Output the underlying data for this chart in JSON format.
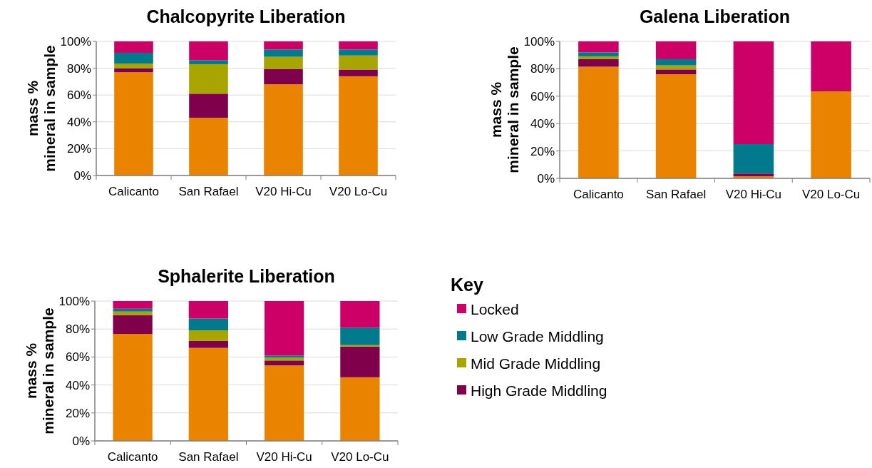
{
  "chart_data": [
    {
      "type": "bar",
      "stacked": true,
      "title": "Chalcopyrite Liberation",
      "ylabel": "mass %\nmineral in sample",
      "categories": [
        "Calicanto",
        "San Rafael",
        "V20 Hi-Cu",
        "V20 Lo-Cu"
      ],
      "ylim": [
        0,
        100
      ],
      "yticks": [
        {
          "value": 0,
          "label": "0%"
        },
        {
          "value": 20,
          "label": "20%"
        },
        {
          "value": 40,
          "label": "40%"
        },
        {
          "value": 60,
          "label": "60%"
        },
        {
          "value": 80,
          "label": "80%"
        },
        {
          "value": 100,
          "label": "100%"
        }
      ],
      "grid": "y",
      "legend": false,
      "series": [
        {
          "color": "#e98300",
          "values": [
            77,
            43,
            68,
            74
          ]
        },
        {
          "color": "#80004c",
          "values": [
            3,
            18,
            11.5,
            5
          ]
        },
        {
          "color": "#a8a400",
          "values": [
            3.5,
            22,
            9,
            10.5
          ]
        },
        {
          "color": "#007a8c",
          "values": [
            8,
            3,
            5.5,
            4.5
          ]
        },
        {
          "color": "#cc0066",
          "values": [
            8.5,
            14,
            6,
            6
          ]
        }
      ]
    },
    {
      "type": "bar",
      "stacked": true,
      "title": "Galena Liberation",
      "ylabel": "mass %\nmineral in sample",
      "categories": [
        "Calicanto",
        "San Rafael",
        "V20 Hi-Cu",
        "V20 Lo-Cu"
      ],
      "ylim": [
        0,
        100
      ],
      "yticks": [
        {
          "value": 0,
          "label": "0%"
        },
        {
          "value": 20,
          "label": "20%"
        },
        {
          "value": 40,
          "label": "40%"
        },
        {
          "value": 60,
          "label": "60%"
        },
        {
          "value": 80,
          "label": "80%"
        },
        {
          "value": 100,
          "label": "100%"
        }
      ],
      "grid": "y",
      "legend": false,
      "series": [
        {
          "color": "#e98300",
          "values": [
            81.5,
            76,
            1.5,
            63.5
          ]
        },
        {
          "color": "#80004c",
          "values": [
            5.5,
            3.5,
            2,
            0.5
          ]
        },
        {
          "color": "#a8a400",
          "values": [
            2,
            3,
            0,
            0
          ]
        },
        {
          "color": "#007a8c",
          "values": [
            3,
            4.5,
            21.5,
            0
          ]
        },
        {
          "color": "#cc0066",
          "values": [
            8,
            13,
            75,
            36
          ]
        }
      ]
    },
    {
      "type": "bar",
      "stacked": true,
      "title": "Sphalerite Liberation",
      "ylabel": "mass %\nmineral in sample",
      "categories": [
        "Calicanto",
        "San Rafael",
        "V20 Hi-Cu",
        "V20 Lo-Cu"
      ],
      "ylim": [
        0,
        100
      ],
      "yticks": [
        {
          "value": 0,
          "label": "0%"
        },
        {
          "value": 20,
          "label": "20%"
        },
        {
          "value": 40,
          "label": "40%"
        },
        {
          "value": 60,
          "label": "60%"
        },
        {
          "value": 80,
          "label": "80%"
        },
        {
          "value": 100,
          "label": "100%"
        }
      ],
      "grid": "y",
      "legend": "right",
      "legend_title": "Key",
      "series": [
        {
          "color": "#e98300",
          "values": [
            76.5,
            66.5,
            54,
            45.5
          ]
        },
        {
          "name": "High Grade Middling",
          "color": "#80004c",
          "values": [
            13.5,
            5,
            3.5,
            22
          ]
        },
        {
          "name": "Mid Grade Middling",
          "color": "#a8a400",
          "values": [
            2.5,
            7.5,
            2,
            1
          ]
        },
        {
          "name": "Low Grade Middling",
          "color": "#007a8c",
          "values": [
            2,
            8.5,
            1.5,
            12.5
          ]
        },
        {
          "name": "Locked",
          "color": "#cc0066",
          "values": [
            5.5,
            12.5,
            39,
            19
          ]
        }
      ]
    }
  ]
}
